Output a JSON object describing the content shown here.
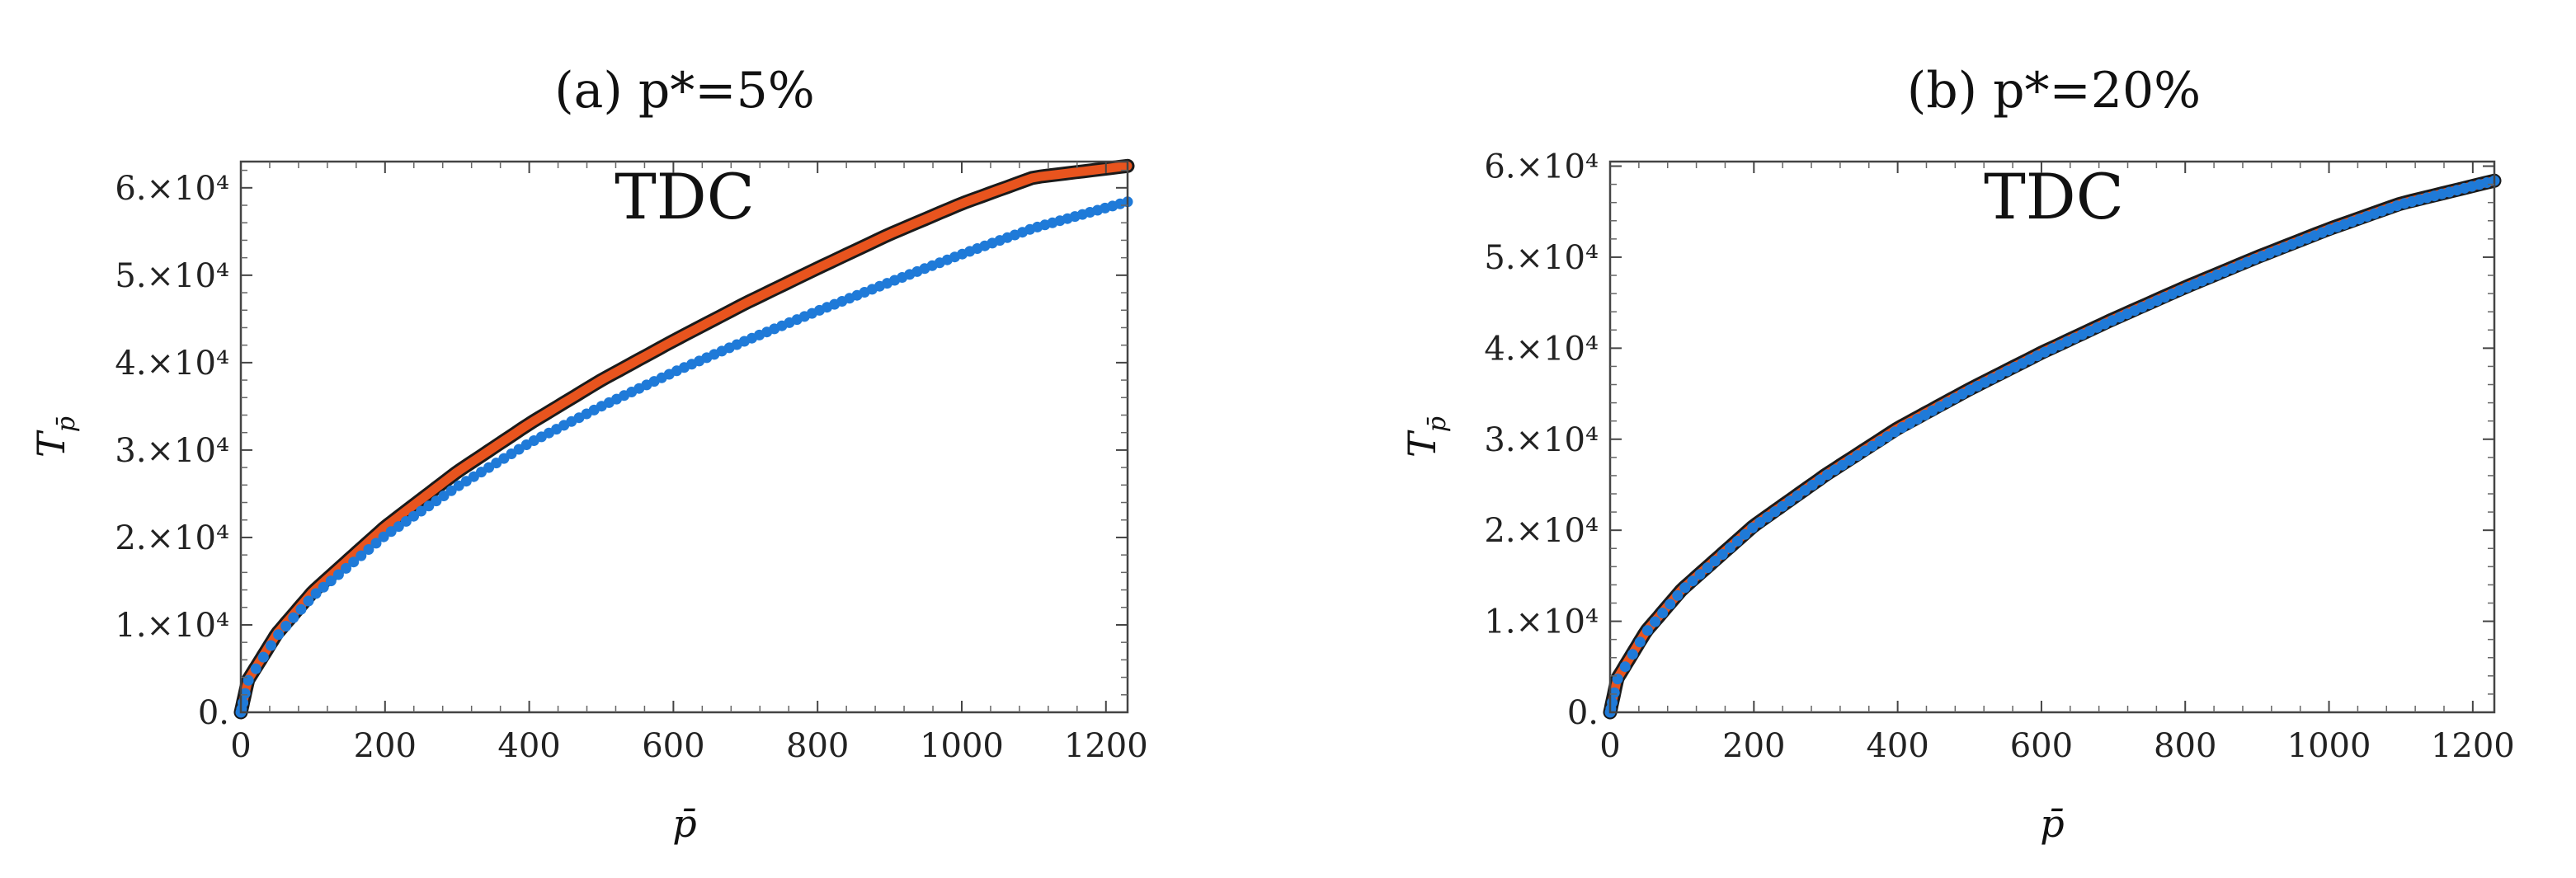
{
  "chart_data": [
    {
      "type": "line",
      "title": "(a) p*=5%",
      "annotation": "TDC",
      "xlabel": "p̄",
      "ylabel": "T",
      "ylabel_sub": "p̄",
      "xlim": [
        0,
        1230
      ],
      "ylim": [
        0,
        63000
      ],
      "x_ticks": [
        0,
        200,
        400,
        600,
        800,
        1000,
        1200
      ],
      "x_tick_labels": [
        "0",
        "200",
        "400",
        "600",
        "800",
        "1000",
        "1200"
      ],
      "y_ticks": [
        0,
        10000,
        20000,
        30000,
        40000,
        50000,
        60000
      ],
      "y_tick_labels": [
        "0.",
        "1.×10⁴",
        "2.×10⁴",
        "3.×10⁴",
        "4.×10⁴",
        "5.×10⁴",
        "6.×10⁴"
      ],
      "series": [
        {
          "kind": "band",
          "color": "#e8541e",
          "x": [
            0,
            10,
            50,
            100,
            200,
            300,
            400,
            500,
            600,
            700,
            800,
            900,
            1000,
            1100,
            1230
          ],
          "y": [
            0,
            3700,
            9000,
            13800,
            21200,
            27500,
            33000,
            38000,
            42500,
            46800,
            50800,
            54700,
            58200,
            61200,
            62500
          ]
        },
        {
          "kind": "dots",
          "color": "#1f7ad8",
          "x": [
            0,
            10,
            50,
            100,
            200,
            300,
            400,
            500,
            600,
            700,
            800,
            900,
            1000,
            1100,
            1230
          ],
          "y": [
            0,
            3600,
            8700,
            13300,
            20200,
            25800,
            30800,
            35000,
            38900,
            42500,
            45900,
            49200,
            52400,
            55400,
            58400
          ]
        }
      ]
    },
    {
      "type": "line",
      "title": "(b) p*=20%",
      "annotation": "TDC",
      "xlabel": "p̄",
      "ylabel": "T",
      "ylabel_sub": "p̄",
      "xlim": [
        0,
        1230
      ],
      "ylim": [
        0,
        60500
      ],
      "x_ticks": [
        0,
        200,
        400,
        600,
        800,
        1000,
        1200
      ],
      "x_tick_labels": [
        "0",
        "200",
        "400",
        "600",
        "800",
        "1000",
        "1200"
      ],
      "y_ticks": [
        0,
        10000,
        20000,
        30000,
        40000,
        50000,
        60000
      ],
      "y_tick_labels": [
        "0.",
        "1.×10⁴",
        "2.×10⁴",
        "3.×10⁴",
        "4.×10⁴",
        "5.×10⁴",
        "6.×10⁴"
      ],
      "series": [
        {
          "kind": "band",
          "color": "#e8541e",
          "x": [
            0,
            10,
            50,
            100,
            200,
            300,
            400,
            500,
            600,
            700,
            800,
            900,
            1000,
            1100,
            1230
          ],
          "y": [
            0,
            3700,
            8900,
            13500,
            20500,
            26100,
            31200,
            35500,
            39500,
            43200,
            46700,
            50000,
            53100,
            55900,
            58400
          ]
        },
        {
          "kind": "dots",
          "color": "#1f7ad8",
          "x": [
            0,
            10,
            50,
            100,
            200,
            300,
            400,
            500,
            600,
            700,
            800,
            900,
            1000,
            1100,
            1230
          ],
          "y": [
            0,
            3600,
            8800,
            13400,
            20400,
            26000,
            31000,
            35400,
            39400,
            43100,
            46600,
            49900,
            53000,
            55800,
            58400
          ]
        }
      ]
    }
  ]
}
